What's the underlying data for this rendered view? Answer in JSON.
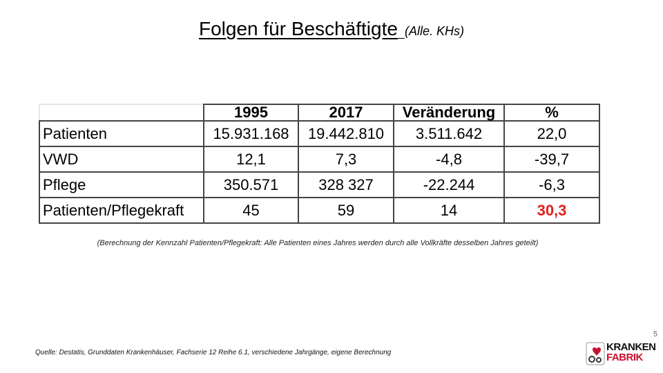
{
  "title": {
    "main": "Folgen für Beschäftigte",
    "sub": "(Alle. KHs)"
  },
  "table": {
    "headers": [
      "",
      "1995",
      "2017",
      "Veränderung",
      "%"
    ],
    "rows": [
      {
        "label": "Patienten",
        "cells": [
          "15.931.168",
          "19.442.810",
          "3.511.642",
          "22,0"
        ]
      },
      {
        "label": "VWD",
        "cells": [
          "12,1",
          "7,3",
          "-4,8",
          "-39,7"
        ]
      },
      {
        "label": "Pflege",
        "cells": [
          "350.571",
          "328 327",
          "-22.244",
          "-6,3"
        ]
      },
      {
        "label": "Patienten/Pflegekraft",
        "cells": [
          "45",
          "59",
          "14",
          "30,3"
        ]
      }
    ],
    "highlight_color": "#e02020"
  },
  "note": "(Berechnung der Kennzahl Patienten/Pflegekraft: Alle Patienten eines Jahres werden durch alle Vollkräfte desselben Jahres geteilt)",
  "page_number": "5",
  "source": "Quelle: Destatis, Grunddaten Krankenhäuser, Fachserie 12 Reihe 6.1, verschiedene Jahrgänge, eigene Berechnung",
  "logo": {
    "line1": "KRANKEN",
    "line2": "FABRIK",
    "brand_color": "#c8102e"
  }
}
